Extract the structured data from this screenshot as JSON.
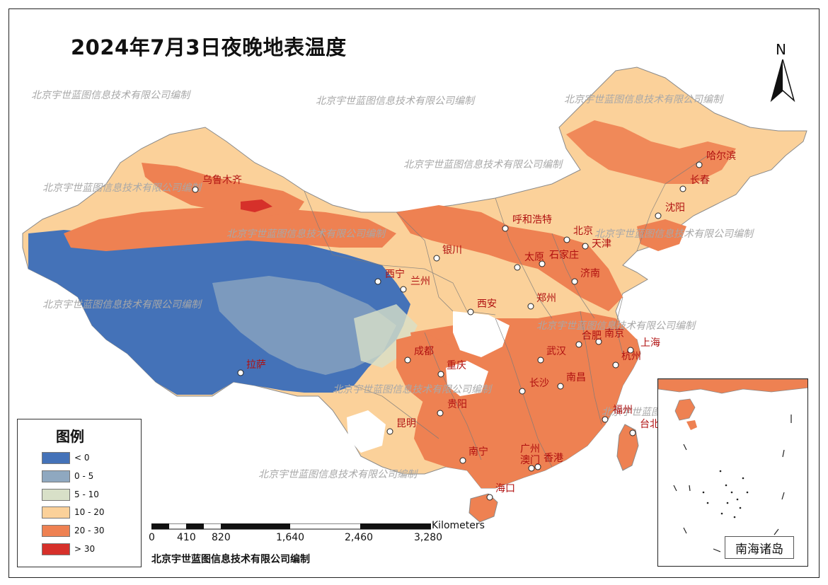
{
  "title": "2024年7月3日夜晚地表温度",
  "north_label": "N",
  "watermark": "北京宇世蓝图信息技术有限公司编制",
  "credit": "北京宇世蓝图信息技术有限公司编制",
  "legend": {
    "title": "图例",
    "items": [
      {
        "label": "< 0",
        "color": "#4472b8"
      },
      {
        "label": "0 - 5",
        "color": "#8fa8c0"
      },
      {
        "label": "5 - 10",
        "color": "#d8e0c8"
      },
      {
        "label": "10 - 20",
        "color": "#fbd19a"
      },
      {
        "label": "20 - 30",
        "color": "#ee8152"
      },
      {
        "label": "> 30",
        "color": "#d6302a"
      }
    ]
  },
  "scale_bar": {
    "unit": "Kilometers",
    "ticks": [
      "0",
      "410",
      "820",
      "1,640",
      "2,460",
      "3,280"
    ]
  },
  "inset_label": "南海诸岛",
  "cities": [
    {
      "name": "乌鲁木齐"
    },
    {
      "name": "哈尔滨"
    },
    {
      "name": "长春"
    },
    {
      "name": "沈阳"
    },
    {
      "name": "呼和浩特"
    },
    {
      "name": "北京"
    },
    {
      "name": "天津"
    },
    {
      "name": "银川"
    },
    {
      "name": "太原"
    },
    {
      "name": "石家庄"
    },
    {
      "name": "济南"
    },
    {
      "name": "西宁"
    },
    {
      "name": "兰州"
    },
    {
      "name": "西安"
    },
    {
      "name": "郑州"
    },
    {
      "name": "合肥"
    },
    {
      "name": "南京"
    },
    {
      "name": "上海"
    },
    {
      "name": "成都"
    },
    {
      "name": "武汉"
    },
    {
      "name": "杭州"
    },
    {
      "name": "拉萨"
    },
    {
      "name": "重庆"
    },
    {
      "name": "长沙"
    },
    {
      "name": "南昌"
    },
    {
      "name": "贵阳"
    },
    {
      "name": "福州"
    },
    {
      "name": "台北"
    },
    {
      "name": "昆明"
    },
    {
      "name": "广州"
    },
    {
      "name": "南宁"
    },
    {
      "name": "澳门"
    },
    {
      "name": "香港"
    },
    {
      "name": "海口"
    }
  ]
}
